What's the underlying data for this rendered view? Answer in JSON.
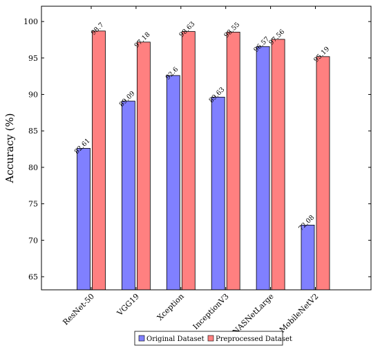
{
  "chart_data": {
    "type": "bar",
    "categories": [
      "ResNet-50",
      "VGG19",
      "Xception",
      "InceptionV3",
      "NASNetLarge",
      "MobileNetV2"
    ],
    "series": [
      {
        "name": "Original Dataset",
        "values": [
          82.61,
          89.09,
          92.6,
          89.63,
          96.57,
          72.08
        ],
        "labels": [
          "82.61",
          "89.09",
          "92.6",
          "89.63",
          "96.57",
          "72.08"
        ],
        "color": "#8080ff"
      },
      {
        "name": "Preprocessed Dataset",
        "values": [
          98.7,
          97.18,
          98.63,
          98.55,
          97.56,
          95.19
        ],
        "labels": [
          "98.7",
          "97.18",
          "98.63",
          "98.55",
          "97.56",
          "95.19"
        ],
        "color": "#ff8080"
      }
    ],
    "xlabel": "",
    "ylabel": "Accuracy (%)",
    "ylim": [
      63.2,
      102.1
    ],
    "yticks": [
      65,
      70,
      75,
      80,
      85,
      90,
      95,
      100
    ],
    "grid": false,
    "legend_position": "bottom-center"
  }
}
